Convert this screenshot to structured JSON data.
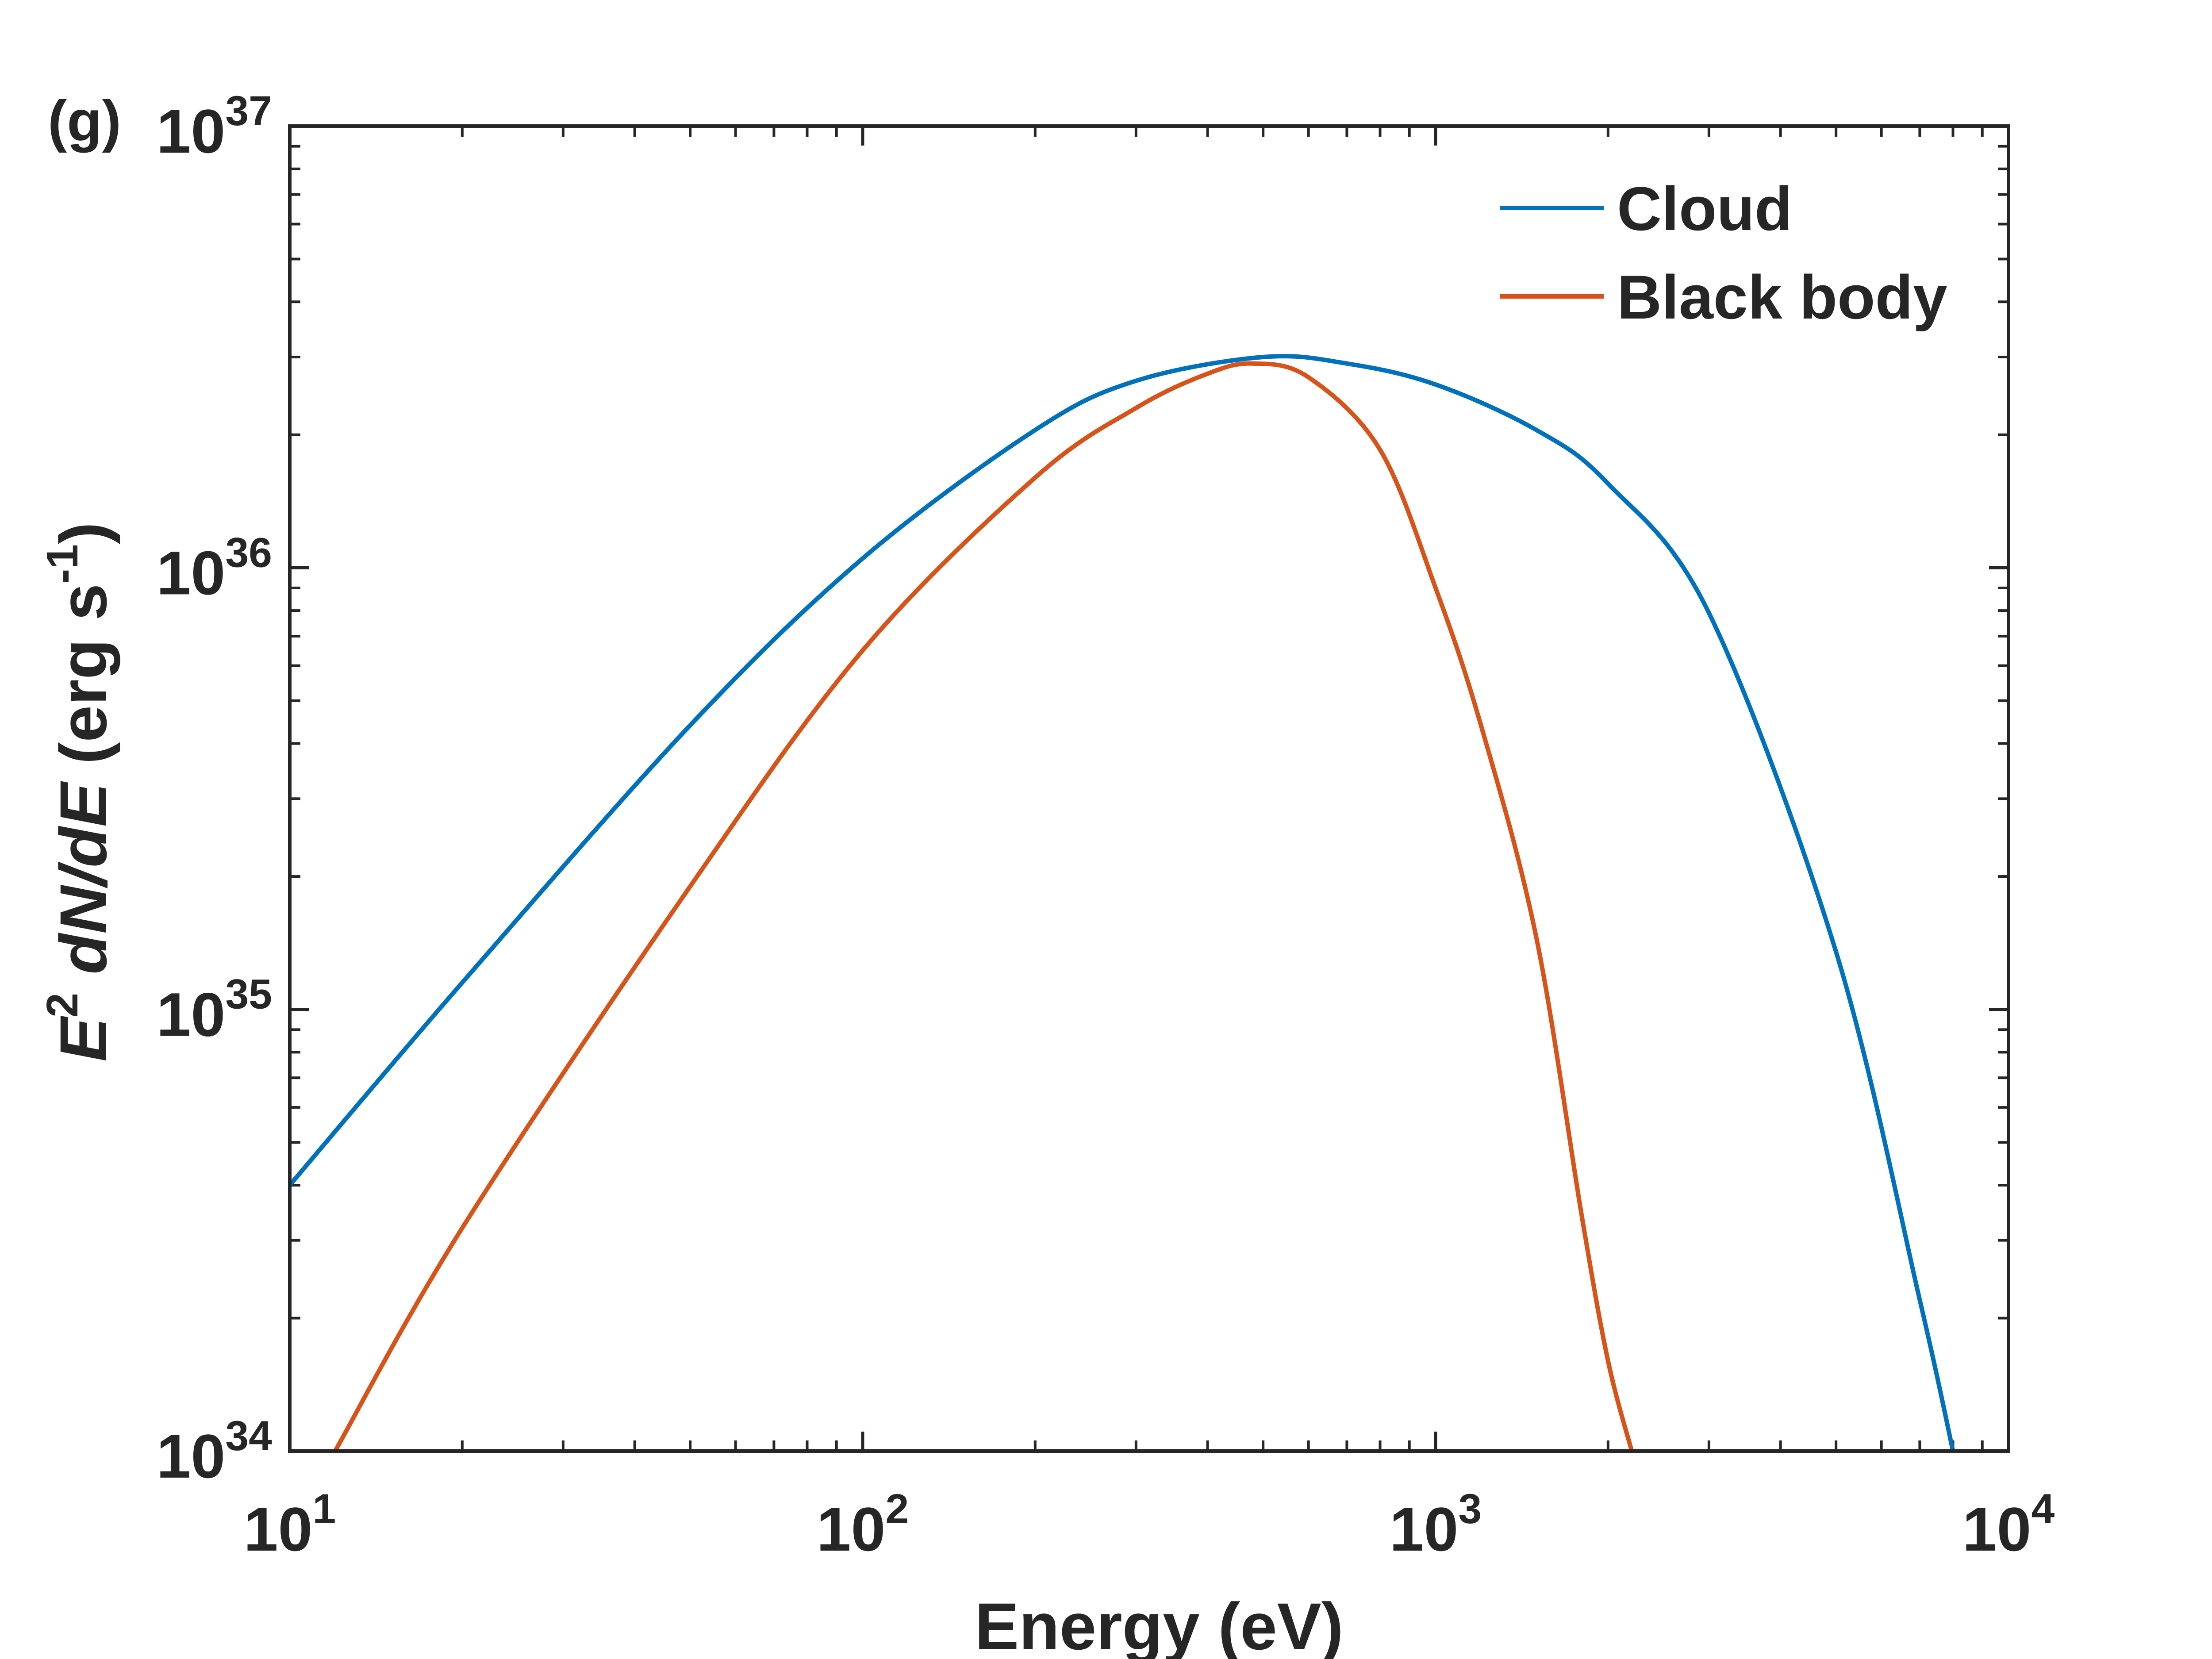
{
  "chart_data": {
    "type": "line",
    "panel_label": "(g)",
    "xscale": "log",
    "yscale": "log",
    "xlim": [
      10,
      10000
    ],
    "ylim": [
      1e+34,
      1e+37
    ],
    "xlabel": "Energy (eV)",
    "ylabel": {
      "base": "E",
      "base_sup": "2",
      "quantity": " dN/dE",
      "units_prefix": " (erg s",
      "units_sup": "-1",
      "units_suffix": ")"
    },
    "x_ticks": [
      {
        "value": 10,
        "base": "10",
        "exp": "1"
      },
      {
        "value": 100,
        "base": "10",
        "exp": "2"
      },
      {
        "value": 1000,
        "base": "10",
        "exp": "3"
      },
      {
        "value": 10000,
        "base": "10",
        "exp": "4"
      }
    ],
    "y_ticks": [
      {
        "value": 1e+34,
        "base": "10",
        "exp": "34"
      },
      {
        "value": 1e+35,
        "base": "10",
        "exp": "35"
      },
      {
        "value": 1e+36,
        "base": "10",
        "exp": "36"
      },
      {
        "value": 1e+37,
        "base": "10",
        "exp": "37"
      }
    ],
    "legend": {
      "placement": "top-right"
    },
    "series": [
      {
        "name": "Cloud",
        "color": "#0072BD",
        "x": [
          10,
          20,
          50,
          100,
          200,
          300,
          500,
          700,
          1000,
          1500,
          2000,
          3000,
          5000,
          7000,
          8000
        ],
        "y": [
          4e+34,
          1.15e+35,
          4.4e+35,
          1.05e+36,
          2.05e+36,
          2.65e+36,
          3e+36,
          2.9e+36,
          2.6e+36,
          2.05e+36,
          1.55e+36,
          7.9e+35,
          1.35e+35,
          2.2e+34,
          1e+34
        ]
      },
      {
        "name": "Black body",
        "color": "#D95319",
        "x": [
          12,
          20,
          50,
          100,
          200,
          300,
          400,
          480,
          600,
          800,
          1000,
          1200,
          1500,
          1800,
          2000,
          2200
        ],
        "y": [
          1e+34,
          3.2e+34,
          1.9e+35,
          6.5e+35,
          1.6e+36,
          2.3e+36,
          2.75e+36,
          2.9e+36,
          2.7e+36,
          1.85e+36,
          9e+35,
          4.4e+35,
          1.45e+35,
          3.4e+34,
          1.6e+34,
          1e+34
        ]
      }
    ]
  }
}
